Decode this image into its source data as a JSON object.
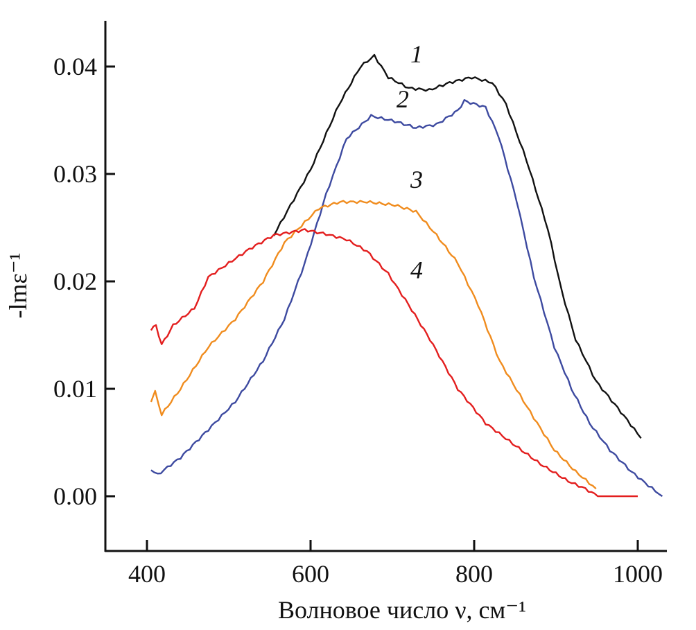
{
  "chart_data": {
    "type": "line",
    "title": "",
    "xlabel": "Волновое число ν, см⁻¹",
    "ylabel": "-lmε⁻¹",
    "xlim": [
      350,
      1050
    ],
    "ylim": [
      -0.005,
      0.044
    ],
    "x_ticks": [
      400,
      600,
      800,
      1000
    ],
    "x_tick_labels": [
      "400",
      "600",
      "800",
      "1000"
    ],
    "y_ticks": [
      0,
      0.01,
      0.02,
      0.03,
      0.04
    ],
    "y_tick_labels": [
      "0.00",
      "0.01",
      "0.02",
      "0.03",
      "0.04"
    ],
    "grid": false,
    "series": [
      {
        "label": "1",
        "color": "#111111",
        "label_at": [
          722,
          0.0404
        ],
        "x": [
          555,
          600,
          635,
          661,
          678,
          695,
          720,
          745,
          770,
          797,
          822,
          839,
          864,
          890,
          907,
          924,
          949,
          983,
          1004
        ],
        "y": [
          0.0243,
          0.0304,
          0.0365,
          0.04,
          0.041,
          0.039,
          0.038,
          0.0378,
          0.0385,
          0.039,
          0.0385,
          0.0365,
          0.0313,
          0.0249,
          0.0191,
          0.0146,
          0.0107,
          0.0075,
          0.0054
        ]
      },
      {
        "label": "2",
        "color": "#3d4aa0",
        "label_at": [
          705,
          0.0362
        ],
        "x": [
          405,
          413,
          441,
          475,
          508,
          542,
          568,
          593,
          619,
          644,
          674,
          703,
          729,
          754,
          780,
          788,
          814,
          830,
          852,
          873,
          898,
          919,
          941,
          966,
          992,
          1013,
          1030
        ],
        "y": [
          0.0025,
          0.002,
          0.0036,
          0.0062,
          0.0088,
          0.0126,
          0.0165,
          0.0217,
          0.0281,
          0.0333,
          0.0354,
          0.0349,
          0.0343,
          0.0346,
          0.0359,
          0.0368,
          0.0362,
          0.0335,
          0.0275,
          0.0204,
          0.0139,
          0.01,
          0.0068,
          0.0043,
          0.0023,
          0.001,
          0
        ]
      },
      {
        "label": "3",
        "color": "#f08c1e",
        "label_at": [
          722,
          0.0287
        ],
        "x": [
          405,
          410,
          418,
          441,
          475,
          508,
          542,
          568,
          593,
          610,
          636,
          669,
          703,
          729,
          754,
          780,
          805,
          831,
          856,
          877,
          898,
          924,
          949
        ],
        "y": [
          0.0089,
          0.0097,
          0.0076,
          0.01,
          0.0139,
          0.0165,
          0.02,
          0.0236,
          0.0255,
          0.0268,
          0.0274,
          0.0274,
          0.0271,
          0.0265,
          0.0243,
          0.0217,
          0.0178,
          0.0126,
          0.0094,
          0.0068,
          0.0043,
          0.0023,
          0.0007
        ]
      },
      {
        "label": "4",
        "color": "#e31e1e",
        "label_at": [
          722,
          0.0203
        ],
        "x": [
          405,
          411,
          418,
          432,
          458,
          475,
          500,
          525,
          555,
          593,
          619,
          644,
          669,
          695,
          720,
          746,
          780,
          814,
          847,
          881,
          915,
          936,
          951,
          1000
        ],
        "y": [
          0.0155,
          0.0159,
          0.0141,
          0.0159,
          0.0175,
          0.0204,
          0.0217,
          0.023,
          0.0243,
          0.0248,
          0.0244,
          0.0239,
          0.0228,
          0.0207,
          0.0178,
          0.0146,
          0.01,
          0.0068,
          0.0049,
          0.003,
          0.0014,
          0.0007,
          0,
          0
        ]
      }
    ]
  }
}
